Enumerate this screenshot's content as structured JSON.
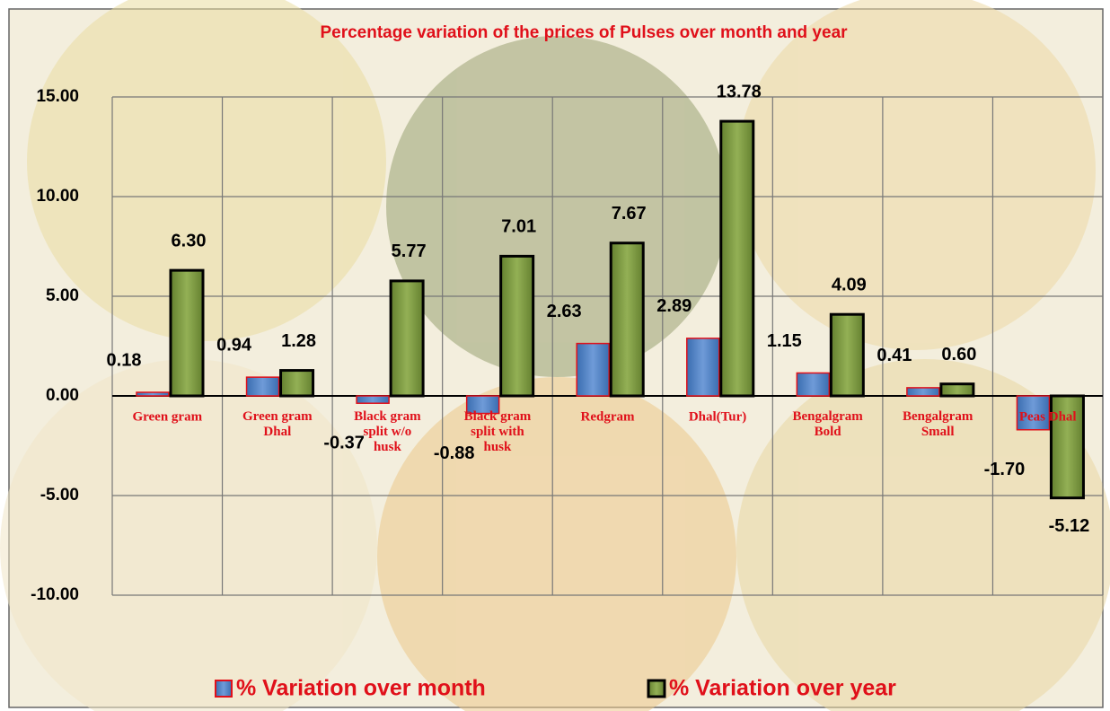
{
  "chart_data": {
    "type": "bar",
    "title": "Percentage variation of the prices of Pulses over month and year",
    "categories": [
      "Green gram",
      "Green gram Dhal",
      "Black gram split w/o husk",
      "Black gram split with husk",
      "Redgram",
      "Dhal(Tur)",
      "Bengalgram Bold",
      "Bengalgram Small",
      "Peas Dhal"
    ],
    "series": [
      {
        "name": "% Variation over month",
        "color": "#4a7ebb",
        "border": "#e0101a",
        "values": [
          0.18,
          0.94,
          -0.37,
          -0.88,
          2.63,
          2.89,
          1.15,
          0.41,
          -1.7
        ],
        "value_labels": [
          "0.18",
          "0.94",
          "-0.37",
          "-0.88",
          "2.63",
          "2.89",
          "1.15",
          "0.41",
          "-1.70"
        ]
      },
      {
        "name": "% Variation over year",
        "color": "#77933c",
        "border": "#000000",
        "values": [
          6.3,
          1.28,
          5.77,
          7.01,
          7.67,
          13.78,
          4.09,
          0.6,
          -5.12
        ],
        "value_labels": [
          "6.30",
          "1.28",
          "5.77",
          "7.01",
          "7.67",
          "13.78",
          "4.09",
          "0.60",
          "-5.12"
        ]
      }
    ],
    "ylim": [
      -10,
      15
    ],
    "yticks": [
      {
        "value": -10,
        "label": "-10.00"
      },
      {
        "value": -5,
        "label": "-5.00"
      },
      {
        "value": 0,
        "label": "0.00"
      },
      {
        "value": 5,
        "label": "5.00"
      },
      {
        "value": 10,
        "label": "10.00"
      },
      {
        "value": 15,
        "label": "15.00"
      }
    ],
    "grid": true
  }
}
